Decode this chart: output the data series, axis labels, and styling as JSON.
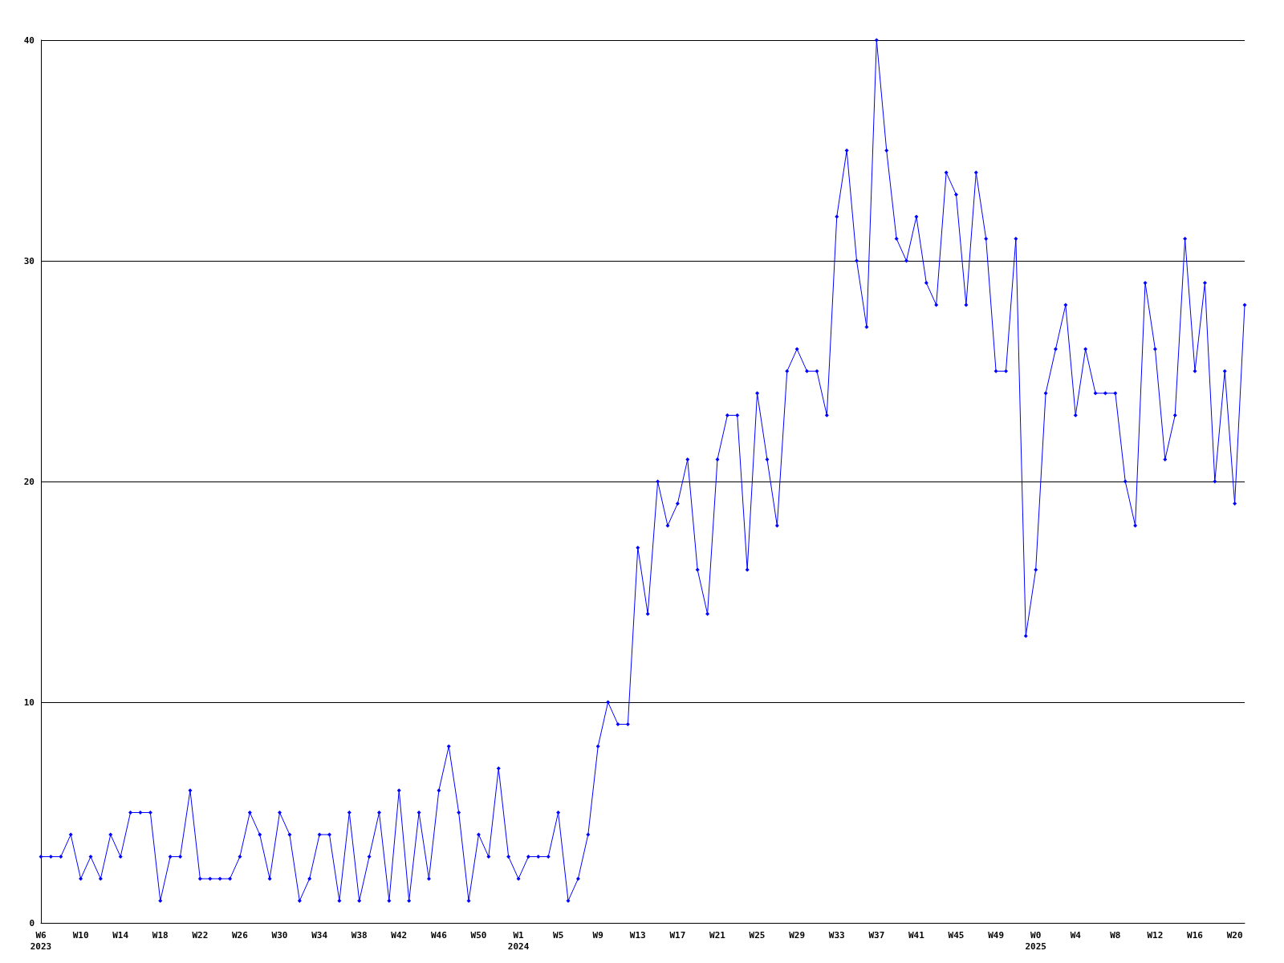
{
  "chart_data": {
    "type": "line",
    "categories": [
      "W6\n2023",
      null,
      null,
      null,
      "W10",
      null,
      null,
      null,
      "W14",
      null,
      null,
      null,
      "W18",
      null,
      null,
      null,
      "W22",
      null,
      null,
      null,
      "W26",
      null,
      null,
      null,
      "W30",
      null,
      null,
      null,
      "W34",
      null,
      null,
      null,
      "W38",
      null,
      null,
      null,
      "W42",
      null,
      null,
      null,
      "W46",
      null,
      null,
      null,
      "W50",
      null,
      null,
      null,
      "W1\n2024",
      null,
      null,
      null,
      "W5",
      null,
      null,
      null,
      "W9",
      null,
      null,
      null,
      "W13",
      null,
      null,
      null,
      "W17",
      null,
      null,
      null,
      "W21",
      null,
      null,
      null,
      "W25",
      null,
      null,
      null,
      "W29",
      null,
      null,
      null,
      "W33",
      null,
      null,
      null,
      "W37",
      null,
      null,
      null,
      "W41",
      null,
      null,
      null,
      "W45",
      null,
      null,
      null,
      "W49",
      null,
      null,
      null,
      "W0\n2025",
      null,
      null,
      null,
      "W4",
      null,
      null,
      null,
      "W8",
      null,
      null,
      null,
      "W12",
      null,
      null,
      null,
      "W16",
      null,
      null,
      null,
      "W20",
      null
    ],
    "series": [
      {
        "color": "#0000ff",
        "values": [
          3,
          3,
          3,
          4,
          2,
          3,
          2,
          4,
          3,
          5,
          5,
          5,
          1,
          3,
          3,
          6,
          2,
          2,
          2,
          2,
          3,
          5,
          4,
          2,
          5,
          4,
          1,
          2,
          4,
          4,
          1,
          5,
          1,
          3,
          5,
          1,
          6,
          1,
          5,
          2,
          6,
          8,
          5,
          1,
          4,
          3,
          7,
          3,
          2,
          3,
          3,
          3,
          5,
          1,
          2,
          4,
          8,
          10,
          9,
          9,
          17,
          14,
          20,
          18,
          19,
          21,
          16,
          14,
          21,
          23,
          23,
          16,
          24,
          21,
          18,
          25,
          26,
          25,
          25,
          23,
          32,
          35,
          30,
          27,
          40,
          35,
          31,
          30,
          32,
          29,
          28,
          34,
          33,
          28,
          34,
          31,
          25,
          25,
          31,
          13,
          16,
          24,
          26,
          28,
          23,
          26,
          24,
          24,
          24,
          20,
          18,
          29,
          26,
          21,
          23,
          31,
          25,
          29,
          20,
          25,
          19,
          28
        ]
      }
    ],
    "ylim": [
      0,
      40
    ],
    "yticks": [
      0,
      10,
      20,
      30,
      40
    ],
    "grid": "y",
    "marker": "diamond",
    "line_style": "solid"
  }
}
